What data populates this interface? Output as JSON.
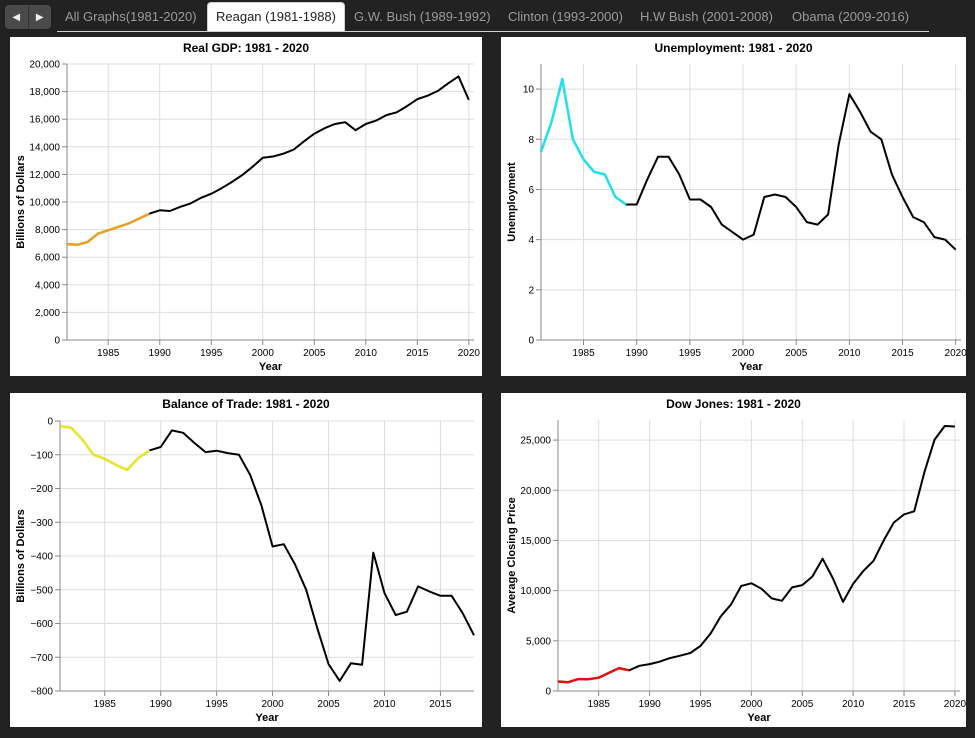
{
  "nav": {
    "prev_icon": "triangle-left-icon",
    "next_icon": "triangle-right-icon"
  },
  "tabs": [
    {
      "label": "All Graphs(1981-2020)",
      "active": false
    },
    {
      "label": "Reagan (1981-1988)",
      "active": true
    },
    {
      "label": "G.W. Bush (1989-1992)",
      "active": false
    },
    {
      "label": "Clinton (1993-2000)",
      "active": false
    },
    {
      "label": "H.W Bush (2001-2008)",
      "active": false
    },
    {
      "label": "Obama (2009-2016)",
      "active": false
    }
  ],
  "chart_data": [
    {
      "id": "gdp",
      "type": "line",
      "title": "Real GDP: 1981 - 2020",
      "xlabel": "Year",
      "ylabel": "Billions of Dollars",
      "xlim": [
        1981,
        2020.5
      ],
      "ylim": [
        0,
        20000
      ],
      "xticks": [
        1985,
        1990,
        1995,
        2000,
        2005,
        2010,
        2015,
        2020
      ],
      "xtick_labels": [
        "1985",
        "1990",
        "1995",
        "2000",
        "2005",
        "2010",
        "2015",
        "2020"
      ],
      "yticks": [
        0,
        2000,
        4000,
        6000,
        8000,
        10000,
        12000,
        14000,
        16000,
        18000,
        20000
      ],
      "ytick_labels": [
        "0",
        "2,000",
        "4,000",
        "6,000",
        "8,000",
        "10,000",
        "12,000",
        "14,000",
        "16,000",
        "18,000",
        "20,000"
      ],
      "grid": true,
      "highlight": {
        "from": 1981,
        "to": 1989,
        "color": "#e8a020"
      },
      "line_color": "#000000",
      "x": [
        1981,
        1982,
        1983,
        1984,
        1985,
        1986,
        1987,
        1988,
        1989,
        1990,
        1991,
        1992,
        1993,
        1994,
        1995,
        1996,
        1997,
        1998,
        1999,
        2000,
        2001,
        2002,
        2003,
        2004,
        2005,
        2006,
        2007,
        2008,
        2009,
        2010,
        2011,
        2012,
        2013,
        2014,
        2015,
        2016,
        2017,
        2018,
        2019,
        2020
      ],
      "y": [
        6950,
        6900,
        7100,
        7700,
        7950,
        8200,
        8450,
        8800,
        9150,
        9400,
        9350,
        9650,
        9900,
        10300,
        10600,
        11000,
        11450,
        11950,
        12550,
        13200,
        13300,
        13500,
        13800,
        14400,
        14950,
        15350,
        15650,
        15780,
        15200,
        15650,
        15900,
        16300,
        16500,
        16950,
        17450,
        17700,
        18050,
        18600,
        19100,
        17400
      ]
    },
    {
      "id": "unemployment",
      "type": "line",
      "title": "Unemployment: 1981 - 2020",
      "xlabel": "Year",
      "ylabel": "Unemployment",
      "xlim": [
        1981,
        2020.5
      ],
      "ylim": [
        0,
        11
      ],
      "xticks": [
        1985,
        1990,
        1995,
        2000,
        2005,
        2010,
        2015,
        2020
      ],
      "xtick_labels": [
        "1985",
        "1990",
        "1995",
        "2000",
        "2005",
        "2010",
        "2015",
        "2020"
      ],
      "yticks": [
        0,
        2,
        4,
        6,
        8,
        10
      ],
      "ytick_labels": [
        "0",
        "2",
        "4",
        "6",
        "8",
        "10"
      ],
      "grid": true,
      "highlight": {
        "from": 1981,
        "to": 1989,
        "color": "#22e0ee"
      },
      "line_color": "#000000",
      "x": [
        1981,
        1982,
        1983,
        1984,
        1985,
        1986,
        1987,
        1988,
        1989,
        1990,
        1991,
        1992,
        1993,
        1994,
        1995,
        1996,
        1997,
        1998,
        1999,
        2000,
        2001,
        2002,
        2003,
        2004,
        2005,
        2006,
        2007,
        2008,
        2009,
        2010,
        2011,
        2012,
        2013,
        2014,
        2015,
        2016,
        2017,
        2018,
        2019,
        2020
      ],
      "y": [
        7.5,
        8.7,
        10.4,
        8.0,
        7.2,
        6.7,
        6.6,
        5.7,
        5.4,
        5.4,
        6.4,
        7.3,
        7.3,
        6.6,
        5.6,
        5.6,
        5.3,
        4.6,
        4.3,
        4.0,
        4.2,
        5.7,
        5.8,
        5.7,
        5.3,
        4.7,
        4.6,
        5.0,
        7.8,
        9.8,
        9.1,
        8.3,
        8.0,
        6.6,
        5.7,
        4.9,
        4.7,
        4.1,
        4.0,
        3.6
      ]
    },
    {
      "id": "trade",
      "type": "line",
      "title": "Balance of Trade: 1981 - 2020",
      "xlabel": "Year",
      "ylabel": "Billions of Dollars",
      "xlim": [
        1981,
        2018
      ],
      "ylim": [
        -800,
        0
      ],
      "xticks": [
        1985,
        1990,
        1995,
        2000,
        2005,
        2010,
        2015
      ],
      "xtick_labels": [
        "1985",
        "1990",
        "1995",
        "2000",
        "2005",
        "2010",
        "2015"
      ],
      "yticks": [
        0,
        -100,
        -200,
        -300,
        -400,
        -500,
        -600,
        -700,
        -800
      ],
      "ytick_labels": [
        "0",
        "−100",
        "−200",
        "−300",
        "−400",
        "−500",
        "−600",
        "−700",
        "−800"
      ],
      "grid": true,
      "highlight": {
        "from": 1981,
        "to": 1989,
        "color": "#e6e62a"
      },
      "line_color": "#000000",
      "x": [
        1981,
        1982,
        1983,
        1984,
        1985,
        1986,
        1987,
        1988,
        1989,
        1990,
        1991,
        1992,
        1993,
        1994,
        1995,
        1996,
        1997,
        1998,
        1999,
        2000,
        2001,
        2002,
        2003,
        2004,
        2005,
        2006,
        2007,
        2008,
        2009,
        2010,
        2011,
        2012,
        2013,
        2014,
        2015,
        2016,
        2017,
        2018
      ],
      "y": [
        -15,
        -20,
        -55,
        -100,
        -112,
        -130,
        -145,
        -110,
        -87,
        -77,
        -28,
        -35,
        -65,
        -92,
        -88,
        -95,
        -100,
        -160,
        -250,
        -372,
        -365,
        -425,
        -500,
        -615,
        -720,
        -770,
        -718,
        -722,
        -390,
        -510,
        -575,
        -565,
        -490,
        -505,
        -518,
        -518,
        -570,
        -635
      ]
    },
    {
      "id": "dow",
      "type": "line",
      "title": "Dow Jones: 1981 - 2020",
      "xlabel": "Year",
      "ylabel": "Average Closing Price",
      "xlim": [
        1981,
        2020.5
      ],
      "ylim": [
        0,
        27000
      ],
      "xticks": [
        1985,
        1990,
        1995,
        2000,
        2005,
        2010,
        2015,
        2020
      ],
      "xtick_labels": [
        "1985",
        "1990",
        "1995",
        "2000",
        "2005",
        "2010",
        "2015",
        "2020"
      ],
      "yticks": [
        0,
        5000,
        10000,
        15000,
        20000,
        25000
      ],
      "ytick_labels": [
        "0",
        "5,000",
        "10,000",
        "15,000",
        "20,000",
        "25,000"
      ],
      "grid": true,
      "highlight": {
        "from": 1981,
        "to": 1988,
        "color": "#dd1111"
      },
      "line_color": "#000000",
      "x": [
        1981,
        1982,
        1983,
        1984,
        1985,
        1986,
        1987,
        1988,
        1989,
        1990,
        1991,
        1992,
        1993,
        1994,
        1995,
        1996,
        1997,
        1998,
        1999,
        2000,
        2001,
        2002,
        2003,
        2004,
        2005,
        2006,
        2007,
        2008,
        2009,
        2010,
        2011,
        2012,
        2013,
        2014,
        2015,
        2016,
        2017,
        2018,
        2019,
        2020
      ],
      "y": [
        950,
        880,
        1190,
        1180,
        1330,
        1800,
        2280,
        2060,
        2510,
        2680,
        2930,
        3280,
        3520,
        3790,
        4490,
        5740,
        7440,
        8620,
        10460,
        10730,
        10190,
        9230,
        8990,
        10320,
        10550,
        11410,
        13180,
        11250,
        8880,
        10670,
        11960,
        12970,
        15000,
        16780,
        17590,
        17900,
        21800,
        25050,
        26400,
        26350
      ]
    }
  ]
}
